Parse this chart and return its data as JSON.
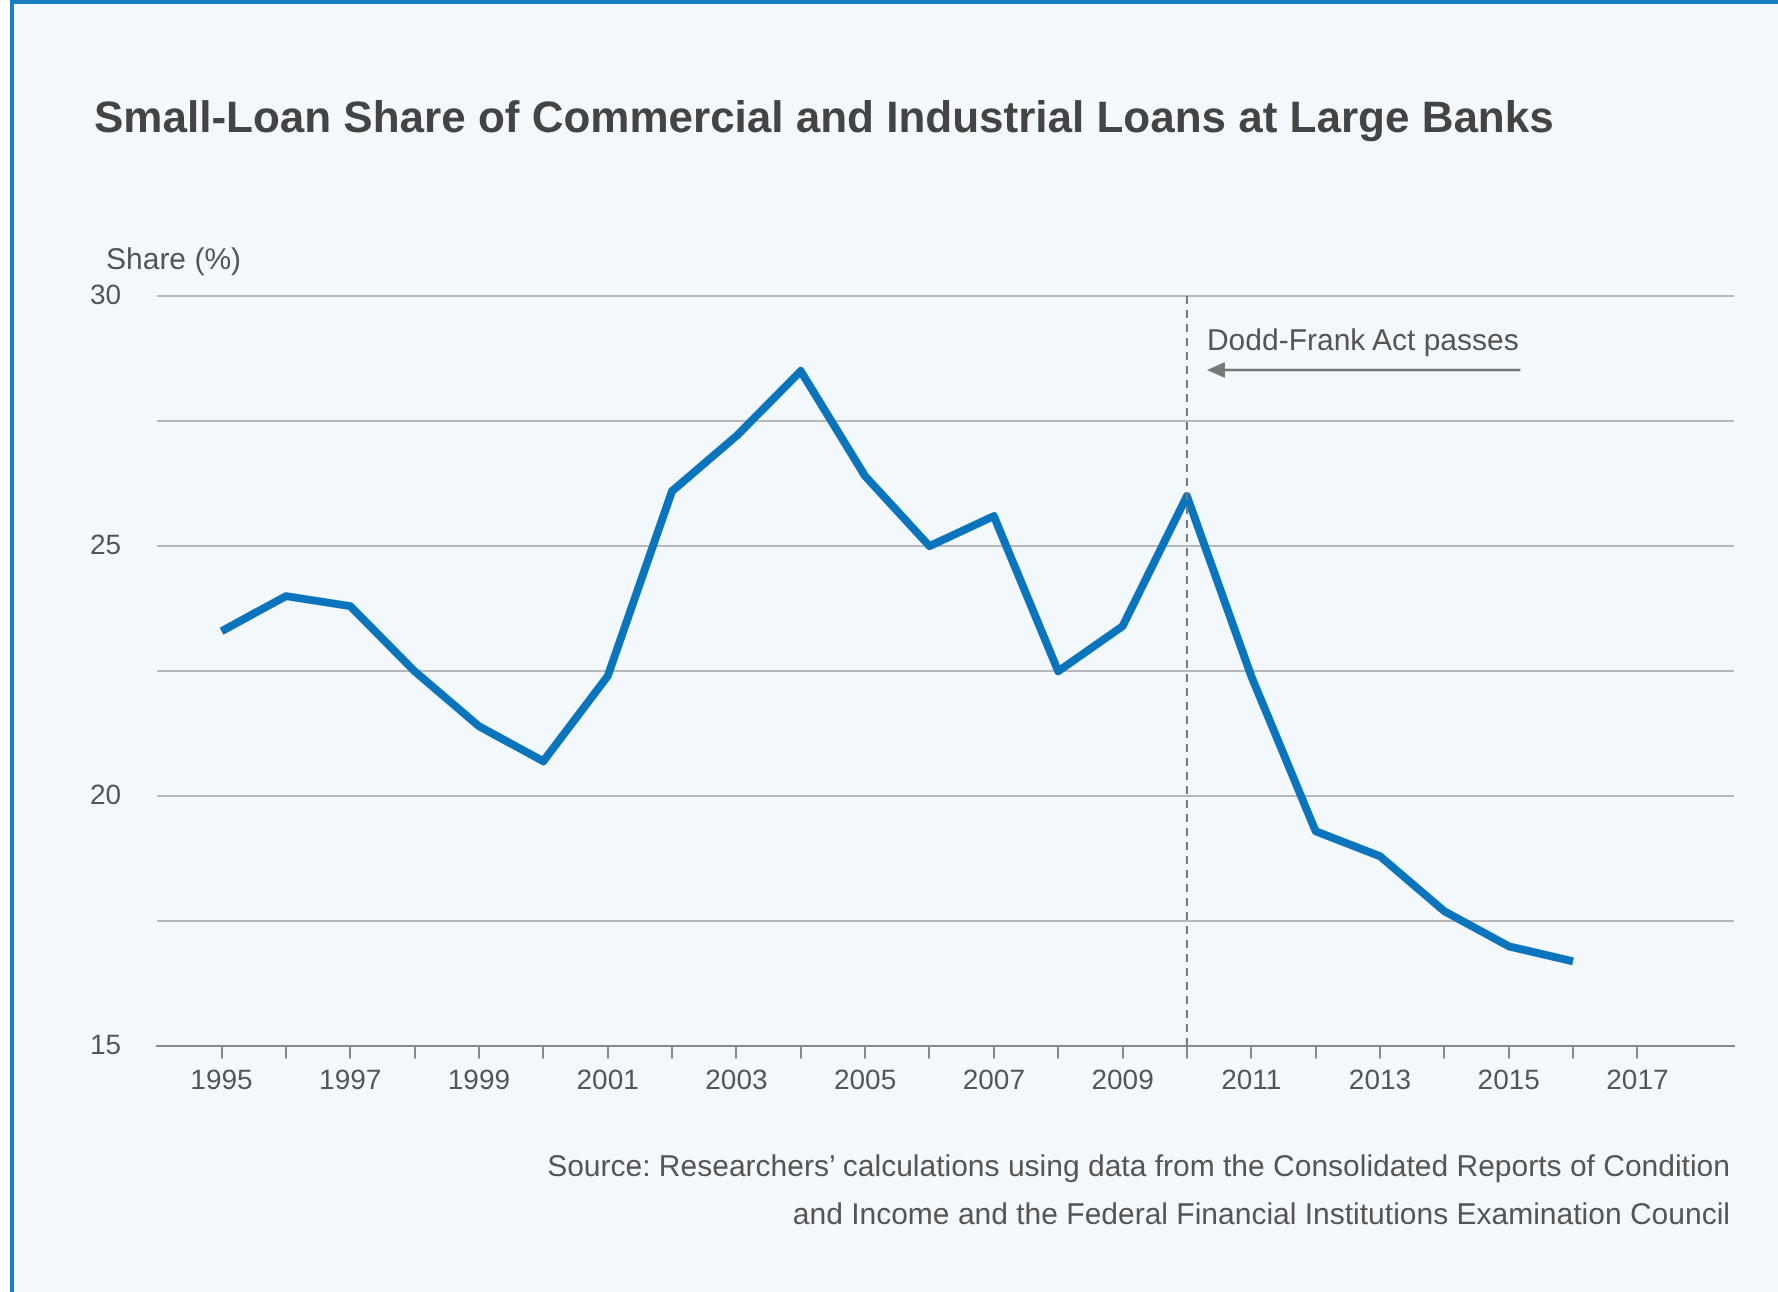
{
  "chart_data": {
    "type": "line",
    "title": "Small-Loan Share of Commercial and Industrial Loans at Large Banks",
    "ylabel": "Share (%)",
    "x": [
      1995,
      1996,
      1997,
      1998,
      1999,
      2000,
      2001,
      2002,
      2003,
      2004,
      2005,
      2006,
      2007,
      2008,
      2009,
      2010,
      2011,
      2012,
      2013,
      2014,
      2015,
      2016
    ],
    "values": [
      23.3,
      24.0,
      23.8,
      22.5,
      21.4,
      20.7,
      22.4,
      26.1,
      27.2,
      28.5,
      26.4,
      25.0,
      25.6,
      22.5,
      23.4,
      26.0,
      22.4,
      19.3,
      18.8,
      17.7,
      17.0,
      16.7
    ],
    "color": "#0a75bd",
    "marker": "none",
    "line_style": "solid",
    "grid": "y",
    "xlim": [
      1994,
      2018.5
    ],
    "xticks": [
      1995,
      {
        "value": 1996,
        "label": null
      },
      1997,
      {
        "value": 1998,
        "label": null
      },
      1999,
      {
        "value": 2000,
        "label": null
      },
      2001,
      {
        "value": 2002,
        "label": null
      },
      2003,
      {
        "value": 2004,
        "label": null
      },
      2005,
      {
        "value": 2006,
        "label": null
      },
      2007,
      {
        "value": 2008,
        "label": null
      },
      2009,
      {
        "value": 2010,
        "label": null
      },
      2011,
      {
        "value": 2012,
        "label": null
      },
      2013,
      {
        "value": 2014,
        "label": null
      },
      2015,
      {
        "value": 2016,
        "label": null
      },
      2017
    ],
    "ylim": [
      15,
      30
    ],
    "yticks": [
      15,
      {
        "value": 17.5,
        "label": null
      },
      20,
      {
        "value": 22.5,
        "label": null
      },
      25,
      {
        "value": 27.5,
        "label": null
      },
      30
    ],
    "ref_lines": [
      {
        "axis": "x",
        "value": 2010,
        "label": "Dodd-Frank Act passes",
        "color": "#777777",
        "line_style": "dashed"
      }
    ],
    "annotations": [
      "Source: Researchers’ calculations using data from the Consolidated Reports of Condition and Income and the Federal Financial Institutions Examination Council"
    ]
  }
}
